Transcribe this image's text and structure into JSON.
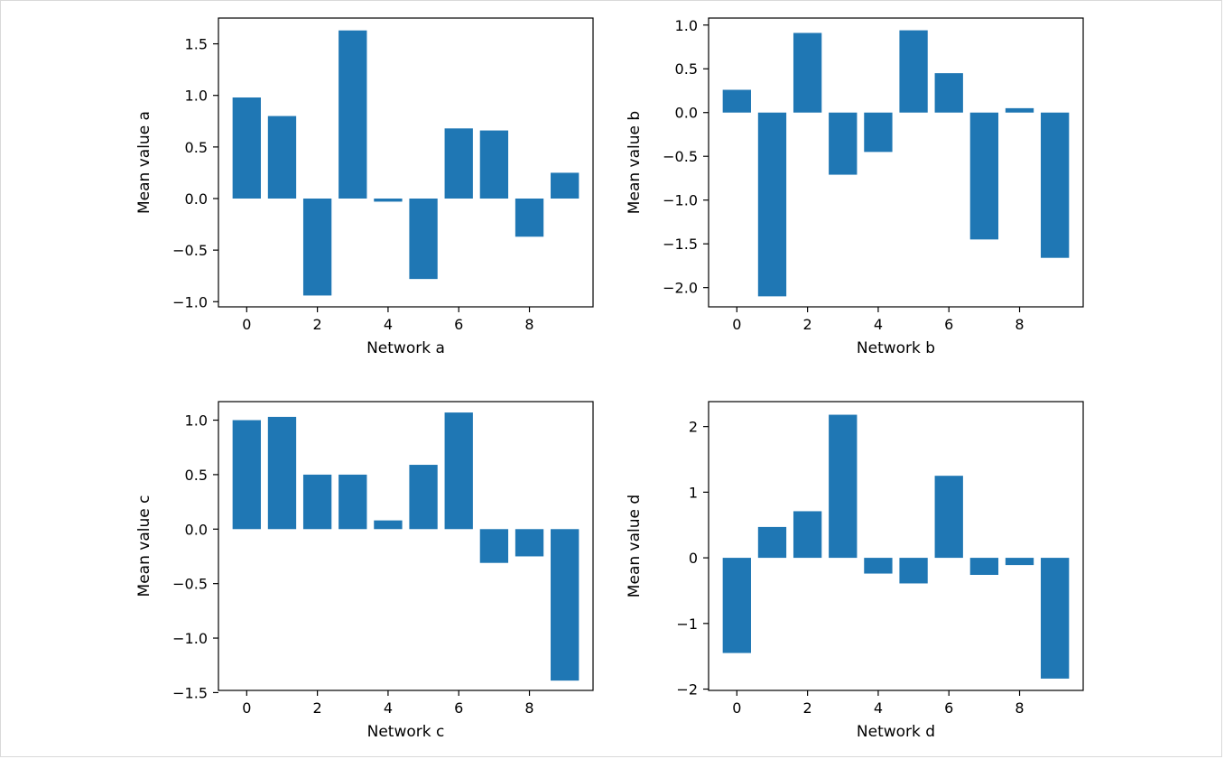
{
  "chart_data": [
    {
      "type": "bar",
      "xlabel": "Network a",
      "ylabel": "Mean value a",
      "categories": [
        0,
        1,
        2,
        3,
        4,
        5,
        6,
        7,
        8,
        9
      ],
      "values": [
        0.98,
        0.8,
        -0.94,
        1.63,
        -0.03,
        -0.78,
        0.68,
        0.66,
        -0.37,
        0.25
      ],
      "ylim": [
        -1.05,
        1.75
      ],
      "xlim": [
        -0.8,
        9.8
      ],
      "xticks": [
        0,
        2,
        4,
        6,
        8
      ],
      "yticks": [
        -1.0,
        -0.5,
        0.0,
        0.5,
        1.0,
        1.5
      ],
      "ytick_labels": [
        "−1.0",
        "−0.5",
        "0.0",
        "0.5",
        "1.0",
        "1.5"
      ],
      "color": "#1f77b4",
      "grid": false
    },
    {
      "type": "bar",
      "xlabel": "Network b",
      "ylabel": "Mean value b",
      "categories": [
        0,
        1,
        2,
        3,
        4,
        5,
        6,
        7,
        8,
        9
      ],
      "values": [
        0.26,
        -2.1,
        0.91,
        -0.71,
        -0.45,
        0.94,
        0.45,
        -1.45,
        0.05,
        -1.66
      ],
      "ylim": [
        -2.22,
        1.08
      ],
      "xlim": [
        -0.8,
        9.8
      ],
      "xticks": [
        0,
        2,
        4,
        6,
        8
      ],
      "yticks": [
        -2.0,
        -1.5,
        -1.0,
        -0.5,
        0.0,
        0.5,
        1.0
      ],
      "ytick_labels": [
        "−2.0",
        "−1.5",
        "−1.0",
        "−0.5",
        "0.0",
        "0.5",
        "1.0"
      ],
      "color": "#1f77b4",
      "grid": false
    },
    {
      "type": "bar",
      "xlabel": "Network c",
      "ylabel": "Mean value c",
      "categories": [
        0,
        1,
        2,
        3,
        4,
        5,
        6,
        7,
        8,
        9
      ],
      "values": [
        1.0,
        1.03,
        0.5,
        0.5,
        0.08,
        0.59,
        1.07,
        -0.31,
        -0.25,
        -1.39
      ],
      "ylim": [
        -1.48,
        1.17
      ],
      "xlim": [
        -0.8,
        9.8
      ],
      "xticks": [
        0,
        2,
        4,
        6,
        8
      ],
      "yticks": [
        -1.5,
        -1.0,
        -0.5,
        0.0,
        0.5,
        1.0
      ],
      "ytick_labels": [
        "−1.5",
        "−1.0",
        "−0.5",
        "0.0",
        "0.5",
        "1.0"
      ],
      "color": "#1f77b4",
      "grid": false
    },
    {
      "type": "bar",
      "xlabel": "Network d",
      "ylabel": "Mean value d",
      "categories": [
        0,
        1,
        2,
        3,
        4,
        5,
        6,
        7,
        8,
        9
      ],
      "values": [
        -1.45,
        0.47,
        0.71,
        2.18,
        -0.24,
        -0.39,
        1.25,
        -0.26,
        -0.11,
        -1.84
      ],
      "ylim": [
        -2.02,
        2.38
      ],
      "xlim": [
        -0.8,
        9.8
      ],
      "xticks": [
        0,
        2,
        4,
        6,
        8
      ],
      "yticks": [
        -2,
        -1,
        0,
        1,
        2
      ],
      "ytick_labels": [
        "−2",
        "−1",
        "0",
        "1",
        "2"
      ],
      "color": "#1f77b4",
      "grid": false
    }
  ]
}
